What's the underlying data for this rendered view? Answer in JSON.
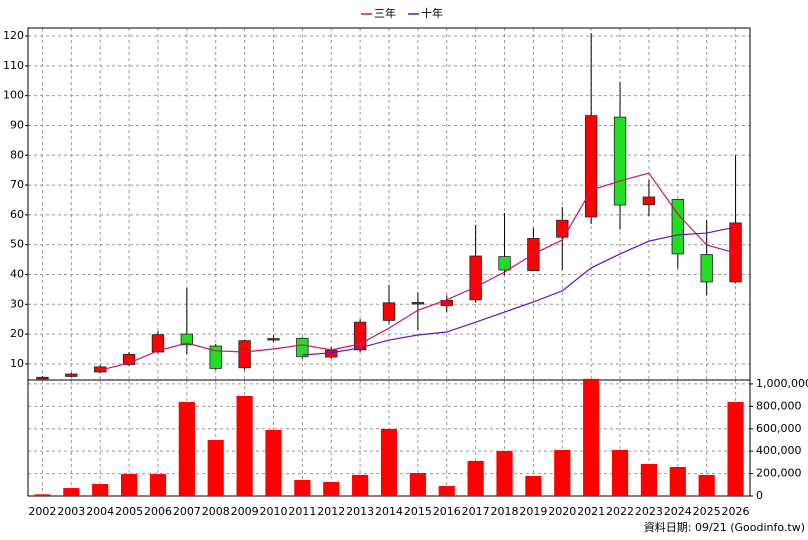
{
  "chart_data": {
    "type": "candlestick",
    "categories": [
      "2002",
      "2003",
      "2004",
      "2005",
      "2006",
      "2007",
      "2008",
      "2009",
      "2010",
      "2011",
      "2012",
      "2013",
      "2014",
      "2015",
      "2016",
      "2017",
      "2018",
      "2019",
      "2020",
      "2021",
      "2022",
      "2023",
      "2024",
      "2025",
      "2026"
    ],
    "open": [
      5.3,
      5.8,
      7.3,
      9.8,
      14,
      20,
      16,
      8.7,
      18.2,
      18.6,
      12.3,
      14.7,
      24.6,
      30.2,
      29.6,
      31.5,
      46,
      41.3,
      52.5,
      59.3,
      92.8,
      63.4,
      65.2,
      46.7,
      37.5
    ],
    "high": [
      5.9,
      7,
      9.7,
      14,
      21,
      35.5,
      16.7,
      18.2,
      19.6,
      18.9,
      15.7,
      25,
      36.5,
      34,
      33,
      56.6,
      60.6,
      55.6,
      62.6,
      121,
      104.6,
      71.7,
      65.3,
      58.3,
      80
    ],
    "low": [
      5,
      5.6,
      6.8,
      9.3,
      13.5,
      13.3,
      8,
      7.9,
      17.3,
      11.8,
      11.8,
      14,
      23.5,
      21.4,
      27.5,
      30.5,
      39.8,
      41.2,
      41.5,
      57,
      55,
      59.6,
      42,
      33,
      37
    ],
    "close": [
      5.5,
      6.6,
      9,
      13.2,
      19.8,
      16.4,
      8.5,
      17.8,
      18.5,
      12.4,
      14.6,
      24,
      30.5,
      30.6,
      31.3,
      46.2,
      41.5,
      52.1,
      58.2,
      93.3,
      63.3,
      66,
      46.9,
      37.5,
      57.3
    ],
    "up_color": "#ff0000",
    "down_color": "#22dd22",
    "series": [
      {
        "name": "三年",
        "color": "#d0106a",
        "values": [
          null,
          null,
          7.9,
          10.3,
          14.4,
          17,
          14.4,
          14,
          15,
          16.4,
          14.7,
          16.7,
          22,
          28,
          31.5,
          35.8,
          40.8,
          46.9,
          51.6,
          68.3,
          71.4,
          74,
          60.3,
          49.9,
          47.2
        ]
      },
      {
        "name": "十年",
        "color": "#6a10c0",
        "values": [
          null,
          null,
          null,
          null,
          null,
          null,
          null,
          null,
          null,
          13,
          13.7,
          15.4,
          18,
          19.7,
          20.7,
          24,
          27.4,
          30.8,
          34.5,
          42.2,
          46.9,
          51.2,
          53.3,
          53.9,
          55.9
        ]
      }
    ],
    "ylim": [
      4.6,
      122.7
    ],
    "yticks": [
      10,
      20,
      30,
      40,
      50,
      60,
      70,
      80,
      90,
      100,
      110,
      120
    ],
    "volume": {
      "color": "#ff0000",
      "values": [
        15000,
        71000,
        107000,
        196000,
        196000,
        839000,
        500000,
        893000,
        589000,
        143000,
        125000,
        188000,
        598000,
        205000,
        89000,
        313000,
        402000,
        179000,
        411000,
        1045000,
        411000,
        286000,
        259000,
        188000,
        839000
      ]
    },
    "y2lim": [
      0,
      1035000
    ],
    "y2ticks": [
      0,
      {
        "value": 200000,
        "label": "200,000"
      },
      {
        "value": 400000,
        "label": "400,000"
      },
      {
        "value": 600000,
        "label": "600,000"
      },
      {
        "value": 800000,
        "label": "800,000"
      },
      {
        "value": 1000000,
        "label": "1,000,000"
      }
    ],
    "grid": true,
    "legend": "top",
    "source": "資料日期: 09/21 (Goodinfo.tw)"
  }
}
